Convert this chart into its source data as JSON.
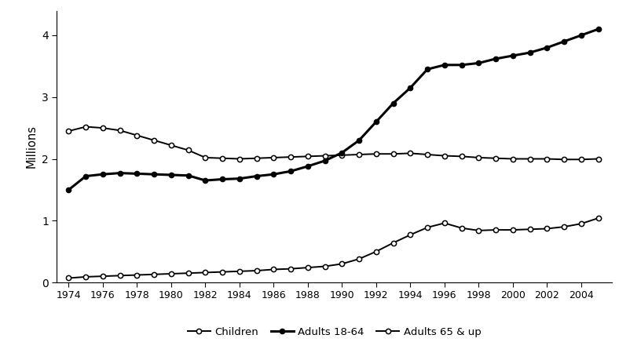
{
  "years": [
    1974,
    1975,
    1976,
    1977,
    1978,
    1979,
    1980,
    1981,
    1982,
    1983,
    1984,
    1985,
    1986,
    1987,
    1988,
    1989,
    1990,
    1991,
    1992,
    1993,
    1994,
    1995,
    1996,
    1997,
    1998,
    1999,
    2000,
    2001,
    2002,
    2003,
    2004,
    2005
  ],
  "children": [
    0.07,
    0.09,
    0.1,
    0.11,
    0.12,
    0.13,
    0.14,
    0.15,
    0.16,
    0.17,
    0.18,
    0.19,
    0.21,
    0.22,
    0.24,
    0.26,
    0.3,
    0.38,
    0.5,
    0.64,
    0.77,
    0.89,
    0.96,
    0.88,
    0.84,
    0.85,
    0.85,
    0.86,
    0.87,
    0.9,
    0.95,
    1.04
  ],
  "adults_18_64": [
    1.5,
    1.72,
    1.75,
    1.77,
    1.76,
    1.75,
    1.74,
    1.73,
    1.65,
    1.67,
    1.68,
    1.72,
    1.75,
    1.8,
    1.88,
    1.97,
    2.1,
    2.3,
    2.6,
    2.9,
    3.15,
    3.45,
    3.52,
    3.52,
    3.55,
    3.62,
    3.67,
    3.72,
    3.8,
    3.9,
    4.0,
    4.1
  ],
  "adults_65_up": [
    2.45,
    2.52,
    2.5,
    2.46,
    2.38,
    2.3,
    2.22,
    2.14,
    2.02,
    2.01,
    2.0,
    2.01,
    2.02,
    2.03,
    2.04,
    2.05,
    2.06,
    2.07,
    2.08,
    2.08,
    2.09,
    2.07,
    2.05,
    2.04,
    2.02,
    2.01,
    2.0,
    2.0,
    2.0,
    1.99,
    1.99,
    2.0
  ],
  "ylabel": "Millions",
  "ylim": [
    0,
    4.4
  ],
  "yticks": [
    0,
    1,
    2,
    3,
    4
  ],
  "xtick_labels": [
    "1974",
    "1976",
    "1978",
    "1980",
    "1982",
    "1984",
    "1986",
    "1988",
    "1990",
    "1992",
    "1994",
    "1996",
    "1998",
    "2000",
    "2002",
    "2004"
  ],
  "xlim": [
    1973.3,
    2005.8
  ],
  "line_color": "#000000",
  "bg_color": "#ffffff",
  "legend_labels": [
    "Children",
    "Adults 18-64",
    "Adults 65 & up"
  ]
}
